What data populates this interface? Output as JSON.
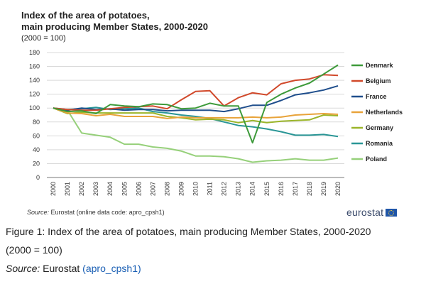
{
  "figure": {
    "title_line1": "Index of the area of potatoes,",
    "title_line2": "main producing Member States, 2000-2020",
    "subtitle": "(2000 = 100)",
    "source_label": "Source:",
    "source_text": "Eurostat (online data code: apro_cpsh1)",
    "logo_text": "eurostat"
  },
  "caption": {
    "text": "Figure 1: Index of the area of potatoes, main producing Member States, 2000-2020",
    "subtext": "(2000 = 100)",
    "source_label": "Source:",
    "source_name": "Eurostat",
    "link_text": "(apro_cpsh1)"
  },
  "chart_data": {
    "type": "line",
    "title": "Index of the area of potatoes, main producing Member States, 2000-2020",
    "subtitle": "(2000 = 100)",
    "xlabel": "",
    "ylabel": "",
    "ylim": [
      0,
      180
    ],
    "yticks": [
      0,
      20,
      40,
      60,
      80,
      100,
      120,
      140,
      160,
      180
    ],
    "grid": true,
    "legend_position": "right",
    "x": [
      "2000",
      "2001",
      "2002",
      "2003",
      "2004",
      "2005",
      "2006",
      "2007",
      "2008",
      "2009",
      "2010",
      "2011",
      "2012",
      "2013",
      "2014",
      "2015",
      "2016",
      "2017",
      "2018",
      "2019",
      "2020"
    ],
    "series": [
      {
        "name": "Denmark",
        "color": "#3d9a3a",
        "values": [
          100,
          95,
          96,
          92,
          105,
          103,
          102,
          106,
          105,
          99,
          100,
          107,
          103,
          103,
          50,
          108,
          120,
          129,
          136,
          149,
          162
        ]
      },
      {
        "name": "Belgium",
        "color": "#d1492b",
        "values": [
          100,
          98,
          97,
          97,
          99,
          101,
          102,
          103,
          99,
          112,
          124,
          125,
          103,
          115,
          122,
          119,
          135,
          140,
          142,
          148,
          147
        ]
      },
      {
        "name": "France",
        "color": "#1f4e8c",
        "values": [
          100,
          97,
          100,
          98,
          99,
          97,
          98,
          98,
          96,
          97,
          97,
          97,
          95,
          99,
          104,
          104,
          111,
          119,
          122,
          126,
          132
        ]
      },
      {
        "name": "Netherlands",
        "color": "#e8a33a",
        "values": [
          100,
          93,
          92,
          89,
          91,
          88,
          88,
          88,
          85,
          87,
          86,
          86,
          86,
          86,
          87,
          86,
          87,
          90,
          91,
          92,
          91
        ]
      },
      {
        "name": "Germany",
        "color": "#9bb52a",
        "values": [
          100,
          92,
          94,
          93,
          93,
          93,
          93,
          93,
          88,
          86,
          83,
          84,
          83,
          79,
          82,
          79,
          81,
          82,
          83,
          90,
          89
        ]
      },
      {
        "name": "Romania",
        "color": "#2a9696",
        "values": [
          100,
          98,
          99,
          101,
          98,
          99,
          100,
          95,
          93,
          90,
          88,
          85,
          80,
          75,
          73,
          70,
          66,
          61,
          61,
          62,
          59
        ]
      },
      {
        "name": "Poland",
        "color": "#96d07a",
        "values": [
          100,
          97,
          64,
          61,
          58,
          48,
          48,
          44,
          42,
          38,
          31,
          31,
          30,
          27,
          22,
          24,
          25,
          27,
          25,
          25,
          28
        ]
      }
    ]
  }
}
